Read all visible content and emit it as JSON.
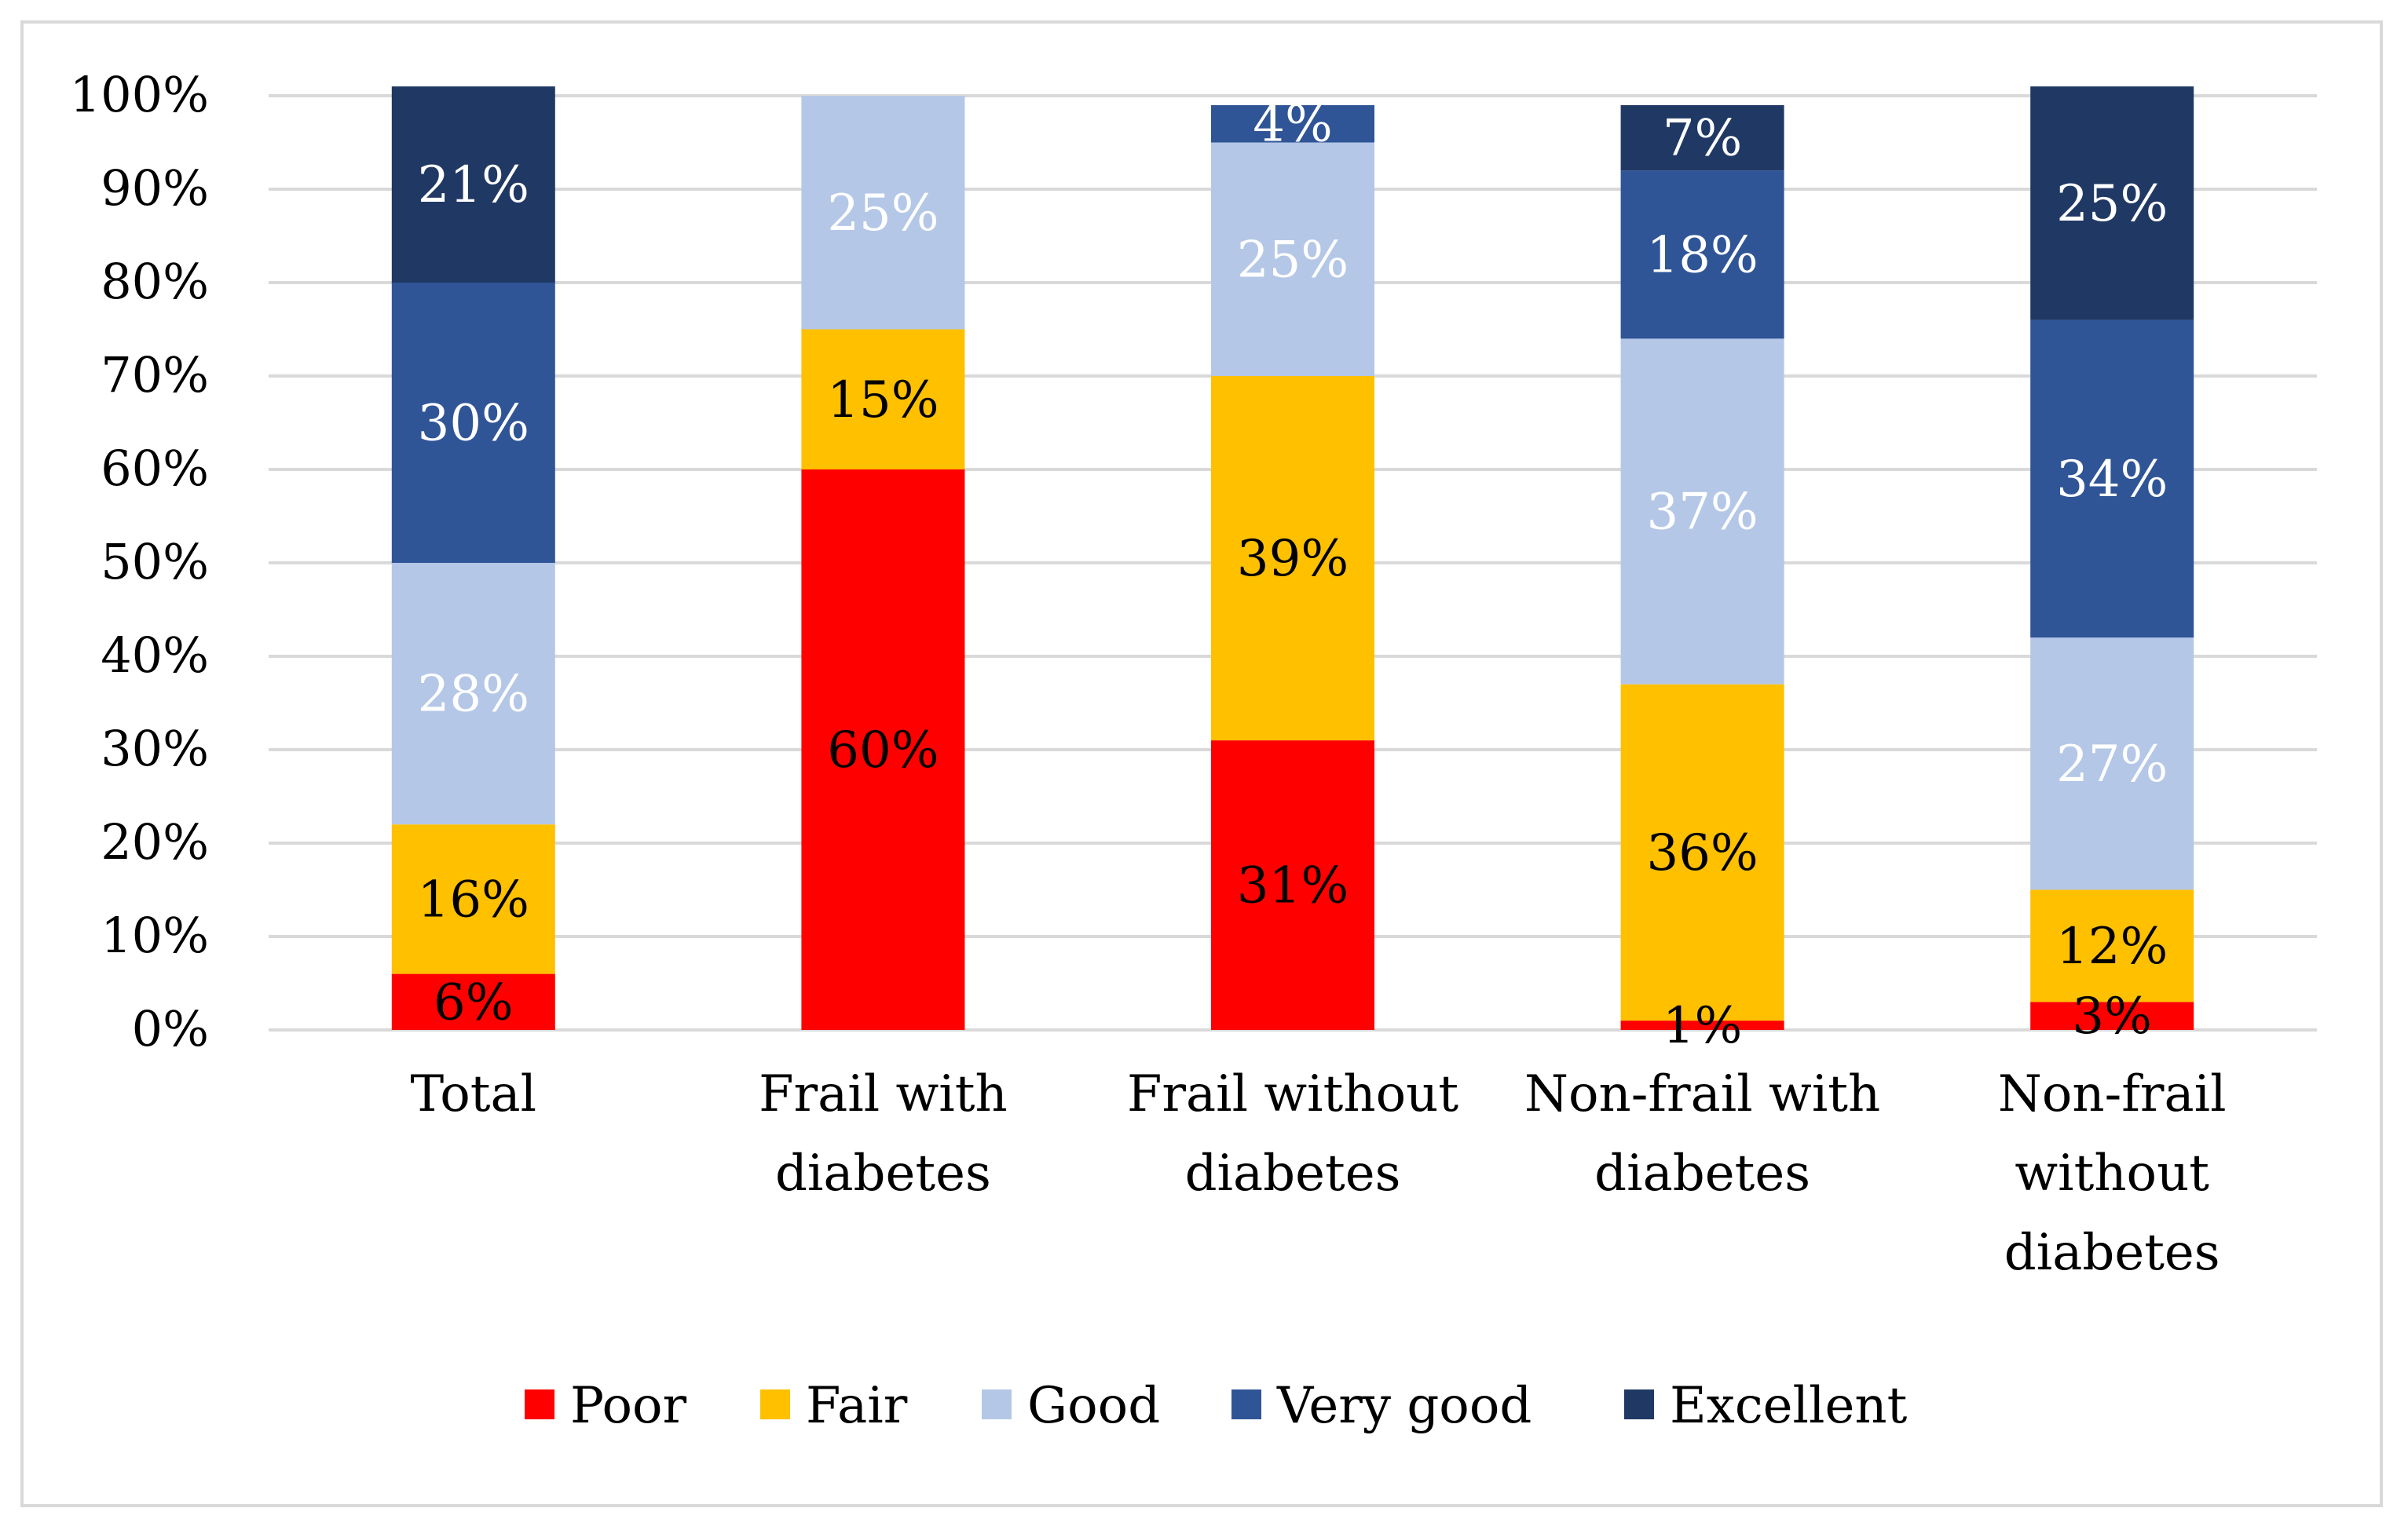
{
  "chart_data": {
    "type": "stacked-bar-100",
    "title": "",
    "xlabel": "",
    "ylabel": "",
    "ylim": [
      0,
      100
    ],
    "yticks": [
      0,
      10,
      20,
      30,
      40,
      50,
      60,
      70,
      80,
      90,
      100
    ],
    "ytick_labels": [
      "0%",
      "10%",
      "20%",
      "30%",
      "40%",
      "50%",
      "60%",
      "70%",
      "80%",
      "90%",
      "100%"
    ],
    "grid": true,
    "legend_position": "bottom",
    "categories": [
      [
        "Total"
      ],
      [
        "Frail with",
        "diabetes"
      ],
      [
        "Frail without",
        "diabetes"
      ],
      [
        "Non-frail with",
        "diabetes"
      ],
      [
        "Non-frail",
        "without",
        "diabetes"
      ]
    ],
    "series": [
      {
        "name": "Poor",
        "color": "#ff0000",
        "values": [
          6,
          60,
          31,
          1,
          3
        ],
        "labels": [
          "6%",
          "60%",
          "31%",
          "1%",
          "3%"
        ],
        "label_color": "#000000"
      },
      {
        "name": "Fair",
        "color": "#ffc000",
        "values": [
          16,
          15,
          39,
          36,
          12
        ],
        "labels": [
          "16%",
          "15%",
          "39%",
          "36%",
          "12%"
        ],
        "label_color": "#000000"
      },
      {
        "name": "Good",
        "color": "#b4c7e7",
        "values": [
          28,
          25,
          25,
          37,
          27
        ],
        "labels": [
          "28%",
          "25%",
          "25%",
          "37%",
          "27%"
        ],
        "label_color": "#ffffff"
      },
      {
        "name": "Very good",
        "color": "#2f5597",
        "values": [
          30,
          0,
          4,
          18,
          34
        ],
        "labels": [
          "30%",
          "",
          "4%",
          "18%",
          "34%"
        ],
        "label_color": "#ffffff"
      },
      {
        "name": "Excellent",
        "color": "#203864",
        "values": [
          21,
          0,
          0,
          7,
          25
        ],
        "labels": [
          "21%",
          "",
          "",
          "7%",
          "25%"
        ],
        "label_color": "#ffffff"
      }
    ]
  }
}
